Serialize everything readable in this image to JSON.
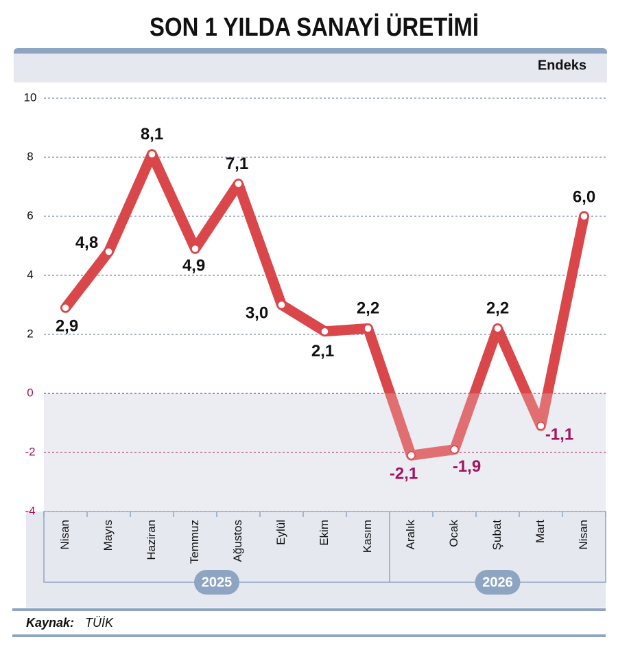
{
  "chart_data": {
    "type": "line",
    "title": "SON 1 YILDA SANAYİ ÜRETİMİ",
    "ylabel": "Endeks",
    "categories": [
      "Nisan",
      "Mayıs",
      "Haziran",
      "Temmuz",
      "Ağustos",
      "Eylül",
      "Ekim",
      "Kasım",
      "Aralık",
      "Ocak",
      "Şubat",
      "Mart",
      "Nisan"
    ],
    "x_groups": [
      "2025",
      "2026"
    ],
    "values": [
      2.9,
      4.8,
      8.1,
      4.9,
      7.1,
      3.0,
      2.1,
      2.2,
      -2.1,
      -1.9,
      2.2,
      -1.1,
      6.0
    ],
    "value_labels": [
      "2,9",
      "4,8",
      "8,1",
      "4,9",
      "7,1",
      "3,0",
      "2,1",
      "2,2",
      "-2,1",
      "-1,9",
      "2,2",
      "-1,1",
      "6,0"
    ],
    "color": "#d9474a",
    "negative_color": "#a3135f",
    "ylim": [
      -4,
      10
    ],
    "yticks": [
      10,
      8,
      6,
      4,
      2,
      0,
      -2,
      -4
    ],
    "grid": true,
    "source_label": "Kaynak:",
    "source": "TÜİK"
  }
}
